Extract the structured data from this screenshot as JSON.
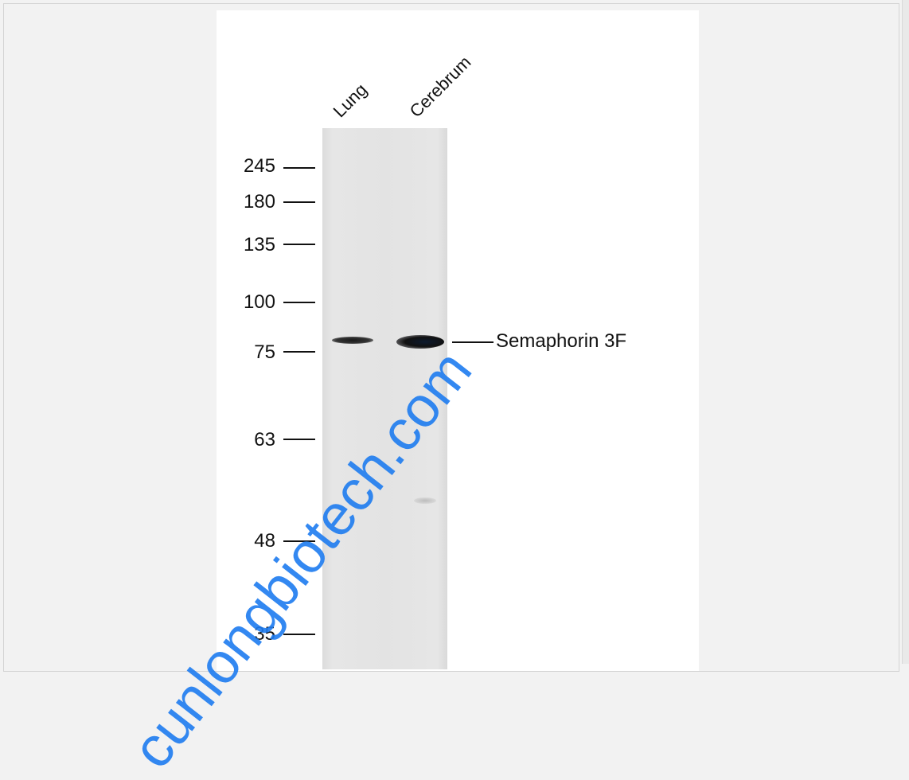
{
  "lanes": [
    {
      "label": "Lung"
    },
    {
      "label": "Cerebrum"
    }
  ],
  "markers": [
    {
      "label": "245"
    },
    {
      "label": "180"
    },
    {
      "label": "135"
    },
    {
      "label": "100"
    },
    {
      "label": "75"
    },
    {
      "label": "63"
    },
    {
      "label": "48"
    },
    {
      "label": "35"
    }
  ],
  "target": {
    "label": "Semaphorin 3F"
  },
  "watermark": {
    "text": "cunlongbiotech.com",
    "color": "#1e7cf0"
  }
}
